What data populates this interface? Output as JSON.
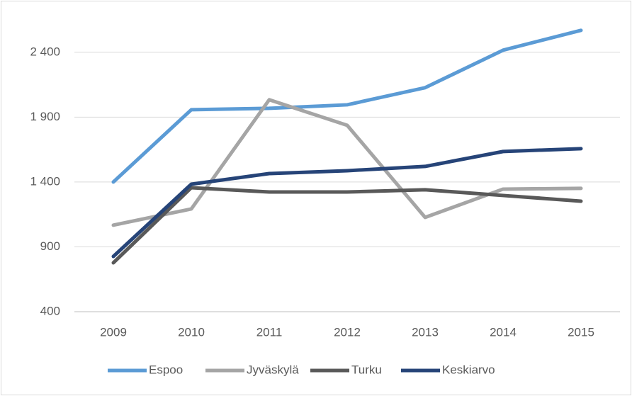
{
  "chart_data": {
    "type": "line",
    "categories": [
      "2009",
      "2010",
      "2011",
      "2012",
      "2013",
      "2014",
      "2015"
    ],
    "series": [
      {
        "name": "Espoo",
        "color": "#5b9bd5",
        "values": [
          1400,
          1957,
          1968,
          1995,
          2127,
          2416,
          2569
        ]
      },
      {
        "name": "Jyväskylä",
        "color": "#a5a5a5",
        "values": [
          1067,
          1192,
          2034,
          1837,
          1127,
          1345,
          1351
        ]
      },
      {
        "name": "Turku",
        "color": "#595959",
        "values": [
          777,
          1356,
          1323,
          1323,
          1340,
          1296,
          1252
        ]
      },
      {
        "name": "Keskiarvo",
        "color": "#264478",
        "values": [
          826,
          1383,
          1465,
          1487,
          1520,
          1635,
          1657
        ]
      }
    ],
    "ylim": [
      400,
      2650
    ],
    "yticks": [
      400,
      900,
      {
        "value": 1400,
        "label": "1 400"
      },
      {
        "value": 1900,
        "label": "1 900"
      },
      {
        "value": 2400,
        "label": "2 400"
      }
    ],
    "grid": true,
    "legend": "bottom"
  }
}
